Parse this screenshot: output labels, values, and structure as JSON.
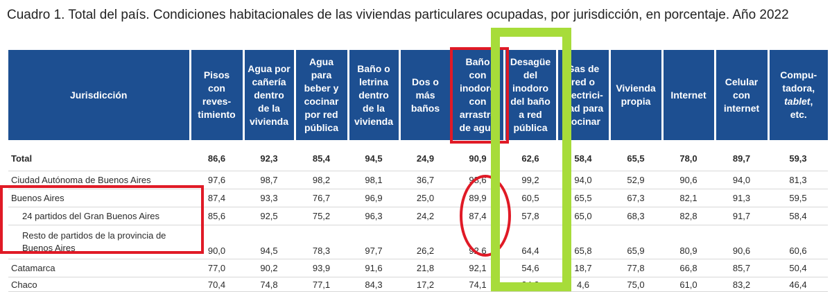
{
  "title": "Cuadro 1. Total del país. Condiciones habitacionales de las viviendas particulares ocupadas, por jurisdicción, en porcentaje. Año 2022",
  "table": {
    "headers": [
      "Jurisdicción",
      "Pisos\ncon\nreves-\ntimiento",
      "Agua por\ncañería\ndentro\nde la\nvivienda",
      "Agua\npara\nbeber y\ncocinar\npor red\npública",
      "Baño o\nletrina\ndentro\nde la\nvivienda",
      "Dos o\nmás\nbaños",
      "Baño\ncon\ninodoro\ncon\narrastre\nde agua",
      "Desagüe\ndel\ninodoro\ndel baño\na red\npública",
      "Gas de\nred o\nelectrici-\ndad para\ncocinar",
      "Vivienda\npropia",
      "Internet",
      "Celular\ncon\ninternet",
      "Compu-\ntadora,\ntablet,\netc."
    ],
    "rows": [
      {
        "name": "Total",
        "values": [
          "86,6",
          "92,3",
          "85,4",
          "94,5",
          "24,9",
          "90,9",
          "62,6",
          "58,4",
          "65,5",
          "78,0",
          "89,7",
          "59,3"
        ]
      },
      {
        "name": "Ciudad Autónoma de Buenos Aires",
        "values": [
          "97,6",
          "98,7",
          "98,2",
          "98,1",
          "36,7",
          "98,6",
          "99,2",
          "94,0",
          "52,9",
          "90,6",
          "94,0",
          "81,3"
        ]
      },
      {
        "name": "Buenos Aires",
        "values": [
          "87,4",
          "93,3",
          "76,7",
          "96,9",
          "25,0",
          "89,9",
          "60,5",
          "65,5",
          "67,3",
          "82,1",
          "91,3",
          "59,5"
        ]
      },
      {
        "name": "24 partidos del Gran Buenos Aires",
        "values": [
          "85,6",
          "92,5",
          "75,2",
          "96,3",
          "24,2",
          "87,4",
          "57,8",
          "65,0",
          "68,3",
          "82,8",
          "91,7",
          "58,4"
        ]
      },
      {
        "name": "Resto de partidos de la provincia de Buenos Aires",
        "values": [
          "90,0",
          "94,5",
          "78,3",
          "97,7",
          "26,2",
          "92,6",
          "64,4",
          "65,8",
          "65,9",
          "80,9",
          "90,6",
          "60,6"
        ]
      },
      {
        "name": "Catamarca",
        "values": [
          "77,0",
          "90,2",
          "93,9",
          "91,6",
          "21,8",
          "92,1",
          "54,6",
          "18,7",
          "77,8",
          "66,8",
          "85,7",
          "50,4"
        ]
      },
      {
        "name": "Chaco",
        "values": [
          "70,4",
          "74,8",
          "77,1",
          "84,3",
          "17,2",
          "74,1",
          "34,2",
          "4,6",
          "75,0",
          "61,0",
          "83,2",
          "46,4"
        ]
      }
    ]
  },
  "annotations": {
    "highlight_colors": {
      "red": "#e01a26",
      "green": "#a7dc3a"
    }
  }
}
